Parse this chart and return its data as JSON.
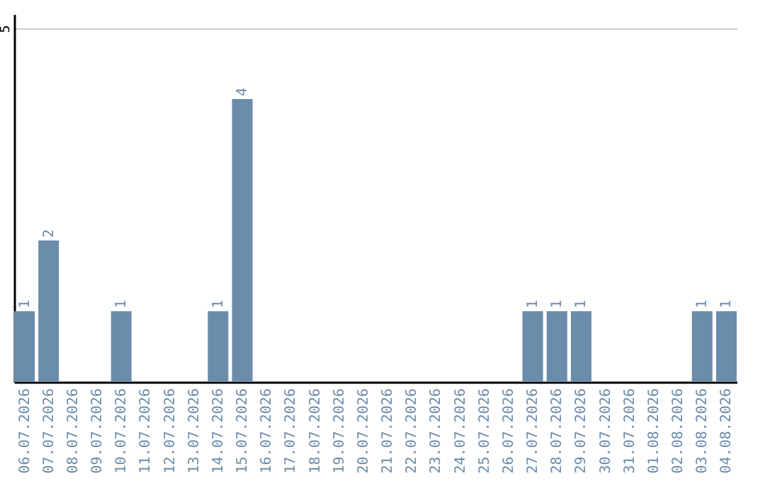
{
  "chart_data": {
    "type": "bar",
    "categories": [
      "06.07.2026",
      "07.07.2026",
      "08.07.2026",
      "09.07.2026",
      "10.07.2026",
      "11.07.2026",
      "12.07.2026",
      "13.07.2026",
      "14.07.2026",
      "15.07.2026",
      "16.07.2026",
      "17.07.2026",
      "18.07.2026",
      "19.07.2026",
      "20.07.2026",
      "21.07.2026",
      "22.07.2026",
      "23.07.2026",
      "24.07.2026",
      "25.07.2026",
      "26.07.2026",
      "27.07.2026",
      "28.07.2026",
      "29.07.2026",
      "30.07.2026",
      "31.07.2026",
      "01.08.2026",
      "02.08.2026",
      "03.08.2026",
      "04.08.2026"
    ],
    "values": [
      1,
      2,
      0,
      0,
      1,
      0,
      0,
      0,
      1,
      4,
      0,
      0,
      0,
      0,
      0,
      0,
      0,
      0,
      0,
      0,
      0,
      1,
      1,
      1,
      0,
      0,
      0,
      0,
      1,
      1
    ],
    "value_labels": [
      "1",
      "2",
      null,
      null,
      "1",
      null,
      null,
      null,
      "1",
      "4",
      null,
      null,
      null,
      null,
      null,
      null,
      null,
      null,
      null,
      null,
      null,
      "1",
      "1",
      "1",
      null,
      null,
      null,
      null,
      "1",
      "1"
    ],
    "color": "#6b8cab",
    "ylim": [
      0,
      5.2
    ],
    "yticks": [
      5
    ],
    "grid": "y"
  }
}
